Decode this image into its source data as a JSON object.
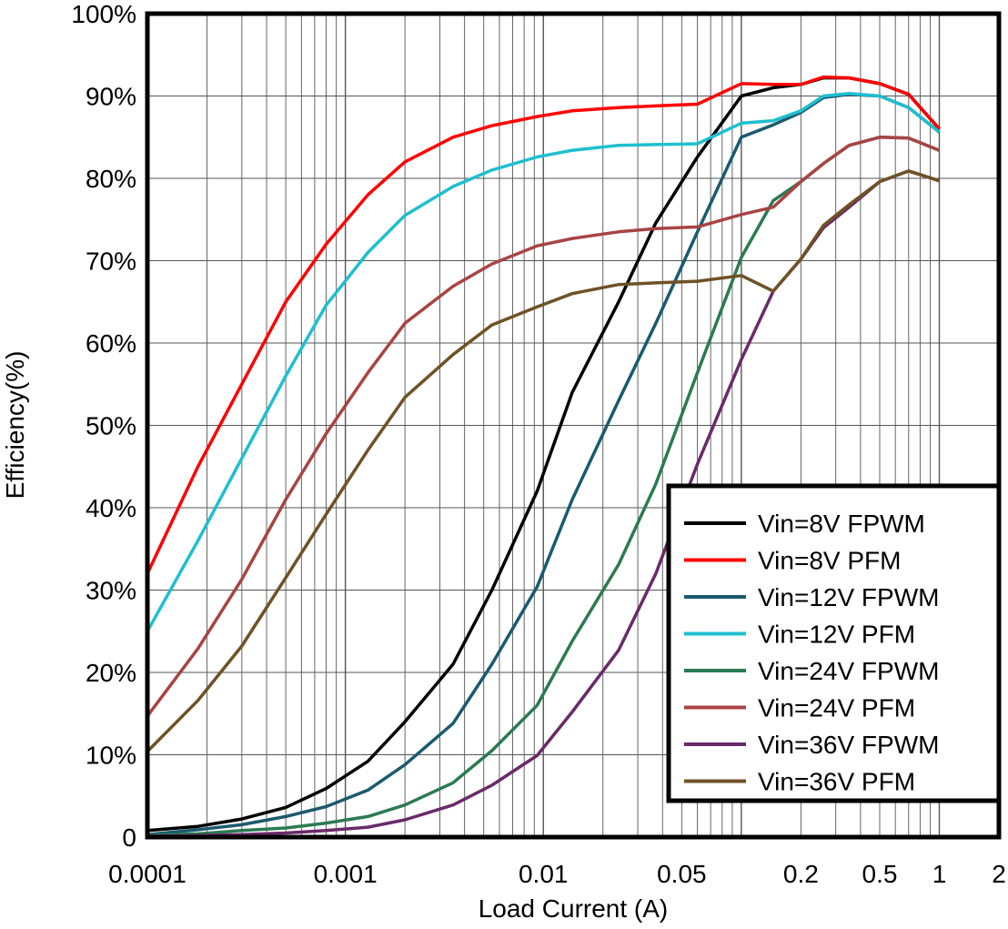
{
  "chart_data": {
    "type": "line",
    "title": "",
    "xlabel": "Load Current (A)",
    "ylabel": "Efficiency(%)",
    "xscale": "log",
    "xlim": [
      0.0001,
      2
    ],
    "ylim": [
      0,
      100
    ],
    "grid": true,
    "legend_position": "bottom-right",
    "x_tick_labels": [
      {
        "value": 0.0001,
        "label": "0.0001"
      },
      {
        "value": 0.001,
        "label": "0.001"
      },
      {
        "value": 0.01,
        "label": "0.01"
      },
      {
        "value": 0.05,
        "label": "0.05"
      },
      {
        "value": 0.2,
        "label": "0.2"
      },
      {
        "value": 0.5,
        "label": "0.5"
      },
      {
        "value": 1,
        "label": "1"
      },
      {
        "value": 2,
        "label": "2"
      }
    ],
    "y_tick_labels": [
      {
        "value": 0,
        "label": "0"
      },
      {
        "value": 10,
        "label": "10%"
      },
      {
        "value": 20,
        "label": "20%"
      },
      {
        "value": 30,
        "label": "30%"
      },
      {
        "value": 40,
        "label": "40%"
      },
      {
        "value": 50,
        "label": "50%"
      },
      {
        "value": 60,
        "label": "60%"
      },
      {
        "value": 70,
        "label": "70%"
      },
      {
        "value": 80,
        "label": "80%"
      },
      {
        "value": 90,
        "label": "90%"
      },
      {
        "value": 100,
        "label": "100%"
      }
    ],
    "x": [
      0.0001,
      0.00018,
      0.0003,
      0.0005,
      0.0008,
      0.0013,
      0.002,
      0.0035,
      0.0055,
      0.0093,
      0.014,
      0.024,
      0.037,
      0.06,
      0.1,
      0.145,
      0.2,
      0.26,
      0.35,
      0.5,
      0.7,
      1.0
    ],
    "series": [
      {
        "name": "Vin=8V FPWM",
        "color": "#000000",
        "values": [
          0.8,
          1.3,
          2.2,
          3.6,
          5.9,
          9.2,
          14,
          21,
          30,
          42,
          54,
          65,
          74.6,
          82.6,
          90,
          91,
          91.4,
          92.2,
          92.2,
          91.5,
          90.2,
          86
        ]
      },
      {
        "name": "Vin=8V PFM",
        "color": "#ff0000",
        "values": [
          32,
          45,
          55,
          65,
          72,
          78,
          82,
          85,
          86.4,
          87.5,
          88.2,
          88.6,
          88.8,
          89,
          91.5,
          91.4,
          91.4,
          92.3,
          92.2,
          91.5,
          90.2,
          86
        ]
      },
      {
        "name": "Vin=12V FPWM",
        "color": "#1b5a6e",
        "values": [
          0.3,
          0.9,
          1.5,
          2.5,
          3.7,
          5.7,
          8.8,
          13.8,
          21,
          30.4,
          41,
          53,
          62.4,
          73.5,
          85,
          86.5,
          88,
          89.8,
          90.2,
          90,
          88.6,
          85.6
        ]
      },
      {
        "name": "Vin=12V PFM",
        "color": "#1fbfcf",
        "values": [
          25,
          36,
          46,
          56,
          64.6,
          71,
          75.5,
          79,
          81,
          82.6,
          83.4,
          84,
          84.1,
          84.2,
          86.7,
          87,
          88.2,
          90,
          90.3,
          90,
          88.6,
          85.6
        ]
      },
      {
        "name": "Vin=24V FPWM",
        "color": "#2b7a52",
        "values": [
          0.2,
          0.4,
          0.8,
          1.1,
          1.7,
          2.5,
          3.9,
          6.6,
          10.5,
          16,
          23.8,
          33.1,
          42.9,
          56.4,
          70.4,
          77.3,
          79.6,
          81.8,
          84,
          85,
          84.9,
          83.4
        ]
      },
      {
        "name": "Vin=24V PFM",
        "color": "#a84444",
        "values": [
          14.7,
          22.9,
          31.3,
          41,
          49,
          56.4,
          62.4,
          66.9,
          69.6,
          71.8,
          72.7,
          73.5,
          73.9,
          74.1,
          75.6,
          76.5,
          79.6,
          81.8,
          84,
          85,
          84.9,
          83.4
        ]
      },
      {
        "name": "Vin=36V FPWM",
        "color": "#6a2a6a",
        "values": [
          0.1,
          0.2,
          0.3,
          0.5,
          0.8,
          1.2,
          2.1,
          3.9,
          6.3,
          9.9,
          15.2,
          22.7,
          32,
          45.3,
          58,
          66.3,
          70.2,
          74,
          76.5,
          79.6,
          80.9,
          79.7
        ]
      },
      {
        "name": "Vin=36V PFM",
        "color": "#6e5226",
        "values": [
          10.4,
          16.6,
          23.2,
          31.5,
          39.2,
          47,
          53.4,
          58.6,
          62.2,
          64.4,
          66,
          67.1,
          67.3,
          67.5,
          68.2,
          66.3,
          70.2,
          74.3,
          76.8,
          79.6,
          80.9,
          79.7
        ]
      }
    ]
  }
}
